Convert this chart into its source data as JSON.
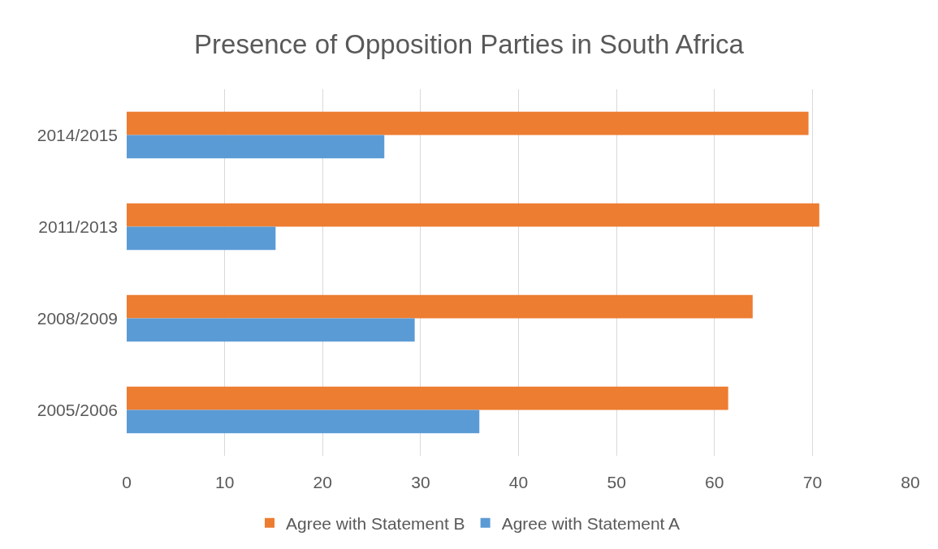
{
  "chart_data": {
    "type": "bar",
    "orientation": "horizontal",
    "title": "Presence of Opposition Parties in South Africa",
    "categories": [
      "2014/2015",
      "2011/2013",
      "2008/2009",
      "2005/2006"
    ],
    "series": [
      {
        "name": "Agree with Statement B",
        "color": "#ed7d31",
        "values": [
          69.6,
          70.7,
          63.9,
          61.4
        ]
      },
      {
        "name": "Agree with Statement A",
        "color": "#5b9bd5",
        "values": [
          26.3,
          15.2,
          29.4,
          36.0
        ]
      }
    ],
    "xlim": [
      0,
      80
    ],
    "xticks": [
      0,
      10,
      20,
      30,
      40,
      50,
      60,
      70,
      80
    ],
    "grid": "x",
    "legend": "bottom"
  }
}
